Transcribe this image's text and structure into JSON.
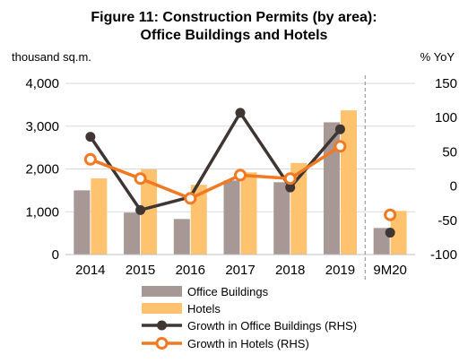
{
  "chart_data": {
    "type": "bar",
    "title_line1": "Figure 11: Construction Permits (by area):",
    "title_line2": "Office Buildings and Hotels",
    "ylabel_left": "thousand sq.m.",
    "ylabel_right": "% YoY",
    "categories": [
      "2014",
      "2015",
      "2016",
      "2017",
      "2018",
      "2019",
      "9M20"
    ],
    "ylim_left": [
      0,
      4000
    ],
    "yticks_left": [
      "0",
      "1,000",
      "2,000",
      "3,000",
      "4,000"
    ],
    "ylim_right": [
      -100,
      150
    ],
    "yticks_right": [
      "-100",
      "-50",
      "0",
      "50",
      "100",
      "150"
    ],
    "bar_series": [
      {
        "name": "Office Buildings",
        "color": "#a79896",
        "values": [
          1500,
          980,
          830,
          1730,
          1690,
          3090,
          620
        ]
      },
      {
        "name": "Hotels",
        "color": "#ffc36f",
        "values": [
          1780,
          1990,
          1630,
          1920,
          2140,
          3370,
          1020
        ]
      }
    ],
    "line_series": [
      {
        "name": "Growth in Office Buildings (RHS)",
        "color": "#3f3634",
        "values": [
          72,
          -35,
          -16,
          107,
          -2,
          83,
          -68
        ],
        "connected_through": 5
      },
      {
        "name": "Growth in Hotels (RHS)",
        "color": "#f07921",
        "values": [
          39,
          11,
          -18,
          16,
          11,
          58,
          -42
        ],
        "connected_through": 5
      }
    ],
    "separator_before": "9M20",
    "grid": "horizontal"
  }
}
